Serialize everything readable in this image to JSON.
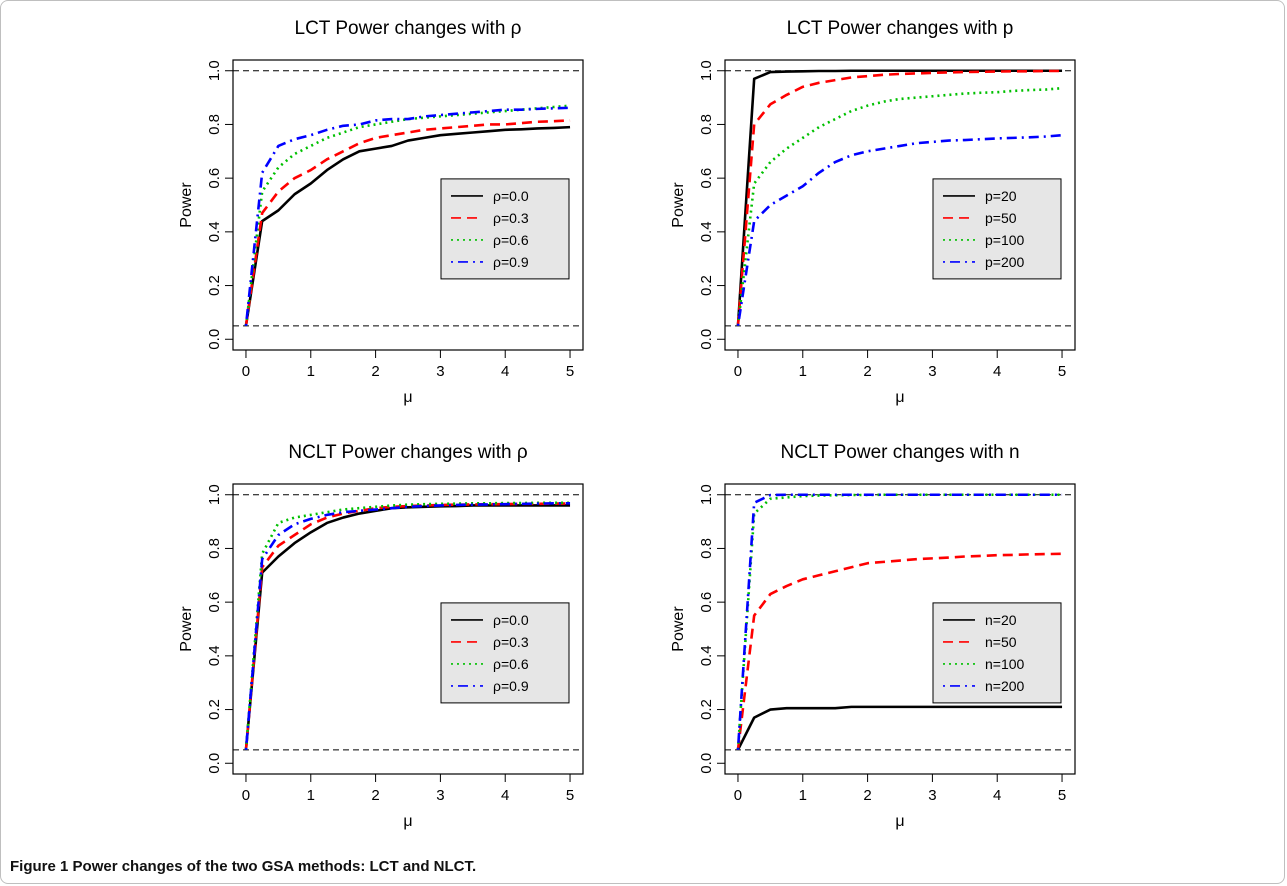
{
  "caption": {
    "label": "Figure 1",
    "text": "Power changes of the two GSA methods: LCT and NLCT."
  },
  "chart_data": [
    {
      "type": "line",
      "title": "LCT Power changes with ρ",
      "xlabel": "μ",
      "ylabel": "Power",
      "xlim": [
        0,
        5
      ],
      "ylim": [
        0,
        1
      ],
      "xticks": [
        "0",
        "1",
        "2",
        "3",
        "4",
        "5"
      ],
      "yticks": [
        "0.0",
        "0.2",
        "0.4",
        "0.6",
        "0.8",
        "1.0"
      ],
      "reference_lines": [
        0.05,
        1.0
      ],
      "grid": false,
      "legend_position": "right",
      "x": [
        0,
        0.25,
        0.5,
        0.75,
        1,
        1.25,
        1.5,
        1.75,
        2,
        2.25,
        2.5,
        2.75,
        3,
        3.25,
        3.5,
        3.75,
        4,
        4.25,
        4.5,
        4.75,
        5
      ],
      "series": [
        {
          "name": "ρ=0.0",
          "color": "#000000",
          "dash": "solid",
          "values": [
            0.05,
            0.44,
            0.48,
            0.54,
            0.58,
            0.63,
            0.67,
            0.7,
            0.71,
            0.72,
            0.74,
            0.75,
            0.76,
            0.765,
            0.77,
            0.775,
            0.78,
            0.782,
            0.785,
            0.787,
            0.79
          ]
        },
        {
          "name": "ρ=0.3",
          "color": "#ff0000",
          "dash": "dashed",
          "values": [
            0.05,
            0.47,
            0.55,
            0.6,
            0.63,
            0.67,
            0.7,
            0.73,
            0.75,
            0.76,
            0.77,
            0.78,
            0.785,
            0.79,
            0.795,
            0.8,
            0.8,
            0.805,
            0.81,
            0.812,
            0.815
          ]
        },
        {
          "name": "ρ=0.6",
          "color": "#00c000",
          "dash": "dotted",
          "values": [
            0.05,
            0.55,
            0.64,
            0.69,
            0.72,
            0.75,
            0.77,
            0.79,
            0.8,
            0.81,
            0.82,
            0.825,
            0.83,
            0.835,
            0.84,
            0.845,
            0.85,
            0.855,
            0.86,
            0.865,
            0.87
          ]
        },
        {
          "name": "ρ=0.9",
          "color": "#0000ff",
          "dash": "dotdash",
          "values": [
            0.05,
            0.62,
            0.72,
            0.745,
            0.76,
            0.78,
            0.795,
            0.8,
            0.815,
            0.82,
            0.82,
            0.83,
            0.835,
            0.84,
            0.845,
            0.85,
            0.855,
            0.855,
            0.858,
            0.86,
            0.862
          ]
        }
      ]
    },
    {
      "type": "line",
      "title": "LCT Power changes with p",
      "xlabel": "μ",
      "ylabel": "Power",
      "xlim": [
        0,
        5
      ],
      "ylim": [
        0,
        1
      ],
      "xticks": [
        "0",
        "1",
        "2",
        "3",
        "4",
        "5"
      ],
      "yticks": [
        "0.0",
        "0.2",
        "0.4",
        "0.6",
        "0.8",
        "1.0"
      ],
      "reference_lines": [
        0.05,
        1.0
      ],
      "grid": false,
      "legend_position": "right",
      "x": [
        0,
        0.25,
        0.5,
        0.75,
        1,
        1.25,
        1.5,
        1.75,
        2,
        2.25,
        2.5,
        2.75,
        3,
        3.25,
        3.5,
        3.75,
        4,
        4.25,
        4.5,
        4.75,
        5
      ],
      "series": [
        {
          "name": "p=20",
          "color": "#000000",
          "dash": "solid",
          "values": [
            0.05,
            0.97,
            0.995,
            0.997,
            0.998,
            0.999,
            0.999,
            1.0,
            1.0,
            1.0,
            1.0,
            1.0,
            1.0,
            1.0,
            1.0,
            1.0,
            1.0,
            1.0,
            1.0,
            1.0,
            1.0
          ]
        },
        {
          "name": "p=50",
          "color": "#ff0000",
          "dash": "dashed",
          "values": [
            0.05,
            0.8,
            0.875,
            0.91,
            0.94,
            0.955,
            0.965,
            0.975,
            0.98,
            0.985,
            0.988,
            0.99,
            0.992,
            0.994,
            0.995,
            0.996,
            0.997,
            0.998,
            0.998,
            0.999,
            0.999
          ]
        },
        {
          "name": "p=100",
          "color": "#00c000",
          "dash": "dotted",
          "values": [
            0.05,
            0.58,
            0.66,
            0.71,
            0.75,
            0.79,
            0.82,
            0.85,
            0.87,
            0.885,
            0.895,
            0.9,
            0.905,
            0.91,
            0.915,
            0.918,
            0.92,
            0.925,
            0.928,
            0.93,
            0.935
          ]
        },
        {
          "name": "p=200",
          "color": "#0000ff",
          "dash": "dotdash",
          "values": [
            0.05,
            0.44,
            0.5,
            0.535,
            0.57,
            0.62,
            0.66,
            0.685,
            0.7,
            0.71,
            0.72,
            0.73,
            0.735,
            0.74,
            0.742,
            0.745,
            0.748,
            0.75,
            0.752,
            0.755,
            0.76
          ]
        }
      ]
    },
    {
      "type": "line",
      "title": "NCLT Power changes with ρ",
      "xlabel": "μ",
      "ylabel": "Power",
      "xlim": [
        0,
        5
      ],
      "ylim": [
        0,
        1
      ],
      "xticks": [
        "0",
        "1",
        "2",
        "3",
        "4",
        "5"
      ],
      "yticks": [
        "0.0",
        "0.2",
        "0.4",
        "0.6",
        "0.8",
        "1.0"
      ],
      "reference_lines": [
        0.05,
        1.0
      ],
      "grid": false,
      "legend_position": "right",
      "x": [
        0,
        0.25,
        0.5,
        0.75,
        1,
        1.25,
        1.5,
        1.75,
        2,
        2.25,
        2.5,
        2.75,
        3,
        3.25,
        3.5,
        3.75,
        4,
        4.25,
        4.5,
        4.75,
        5
      ],
      "series": [
        {
          "name": "ρ=0.0",
          "color": "#000000",
          "dash": "solid",
          "values": [
            0.05,
            0.71,
            0.77,
            0.82,
            0.86,
            0.895,
            0.915,
            0.93,
            0.94,
            0.95,
            0.953,
            0.955,
            0.957,
            0.958,
            0.96,
            0.96,
            0.96,
            0.96,
            0.96,
            0.96,
            0.96
          ]
        },
        {
          "name": "ρ=0.3",
          "color": "#ff0000",
          "dash": "dashed",
          "values": [
            0.05,
            0.73,
            0.81,
            0.85,
            0.89,
            0.915,
            0.93,
            0.94,
            0.95,
            0.955,
            0.958,
            0.96,
            0.962,
            0.963,
            0.964,
            0.965,
            0.965,
            0.966,
            0.966,
            0.967,
            0.967
          ]
        },
        {
          "name": "ρ=0.6",
          "color": "#00c000",
          "dash": "dotted",
          "values": [
            0.05,
            0.78,
            0.895,
            0.915,
            0.925,
            0.935,
            0.945,
            0.95,
            0.955,
            0.96,
            0.963,
            0.965,
            0.966,
            0.967,
            0.968,
            0.968,
            0.969,
            0.969,
            0.97,
            0.97,
            0.97
          ]
        },
        {
          "name": "ρ=0.9",
          "color": "#0000ff",
          "dash": "dotdash",
          "values": [
            0.05,
            0.76,
            0.85,
            0.89,
            0.91,
            0.925,
            0.935,
            0.94,
            0.945,
            0.95,
            0.955,
            0.958,
            0.96,
            0.962,
            0.963,
            0.964,
            0.965,
            0.966,
            0.967,
            0.968,
            0.968
          ]
        }
      ]
    },
    {
      "type": "line",
      "title": "NCLT Power changes with n",
      "xlabel": "μ",
      "ylabel": "Power",
      "xlim": [
        0,
        5
      ],
      "ylim": [
        0,
        1
      ],
      "xticks": [
        "0",
        "1",
        "2",
        "3",
        "4",
        "5"
      ],
      "yticks": [
        "0.0",
        "0.2",
        "0.4",
        "0.6",
        "0.8",
        "1.0"
      ],
      "reference_lines": [
        0.05,
        1.0
      ],
      "grid": false,
      "legend_position": "right",
      "x": [
        0,
        0.25,
        0.5,
        0.75,
        1,
        1.25,
        1.5,
        1.75,
        2,
        2.25,
        2.5,
        2.75,
        3,
        3.25,
        3.5,
        3.75,
        4,
        4.25,
        4.5,
        4.75,
        5
      ],
      "series": [
        {
          "name": "n=20",
          "color": "#000000",
          "dash": "solid",
          "values": [
            0.05,
            0.17,
            0.2,
            0.205,
            0.205,
            0.205,
            0.205,
            0.21,
            0.21,
            0.21,
            0.21,
            0.21,
            0.21,
            0.21,
            0.21,
            0.21,
            0.21,
            0.21,
            0.21,
            0.21,
            0.21
          ]
        },
        {
          "name": "n=50",
          "color": "#ff0000",
          "dash": "dashed",
          "values": [
            0.05,
            0.55,
            0.63,
            0.66,
            0.685,
            0.7,
            0.715,
            0.73,
            0.745,
            0.75,
            0.755,
            0.76,
            0.763,
            0.766,
            0.77,
            0.772,
            0.775,
            0.776,
            0.778,
            0.779,
            0.78
          ]
        },
        {
          "name": "n=100",
          "color": "#00c000",
          "dash": "dotted",
          "values": [
            0.05,
            0.93,
            0.985,
            0.99,
            0.995,
            0.997,
            0.998,
            0.999,
            0.999,
            1.0,
            1.0,
            1.0,
            1.0,
            1.0,
            1.0,
            1.0,
            1.0,
            1.0,
            1.0,
            1.0,
            1.0
          ]
        },
        {
          "name": "n=200",
          "color": "#0000ff",
          "dash": "dotdash",
          "values": [
            0.05,
            0.97,
            0.999,
            1.0,
            1.0,
            1.0,
            1.0,
            1.0,
            1.0,
            1.0,
            1.0,
            1.0,
            1.0,
            1.0,
            1.0,
            1.0,
            1.0,
            1.0,
            1.0,
            1.0,
            1.0
          ]
        }
      ]
    }
  ]
}
